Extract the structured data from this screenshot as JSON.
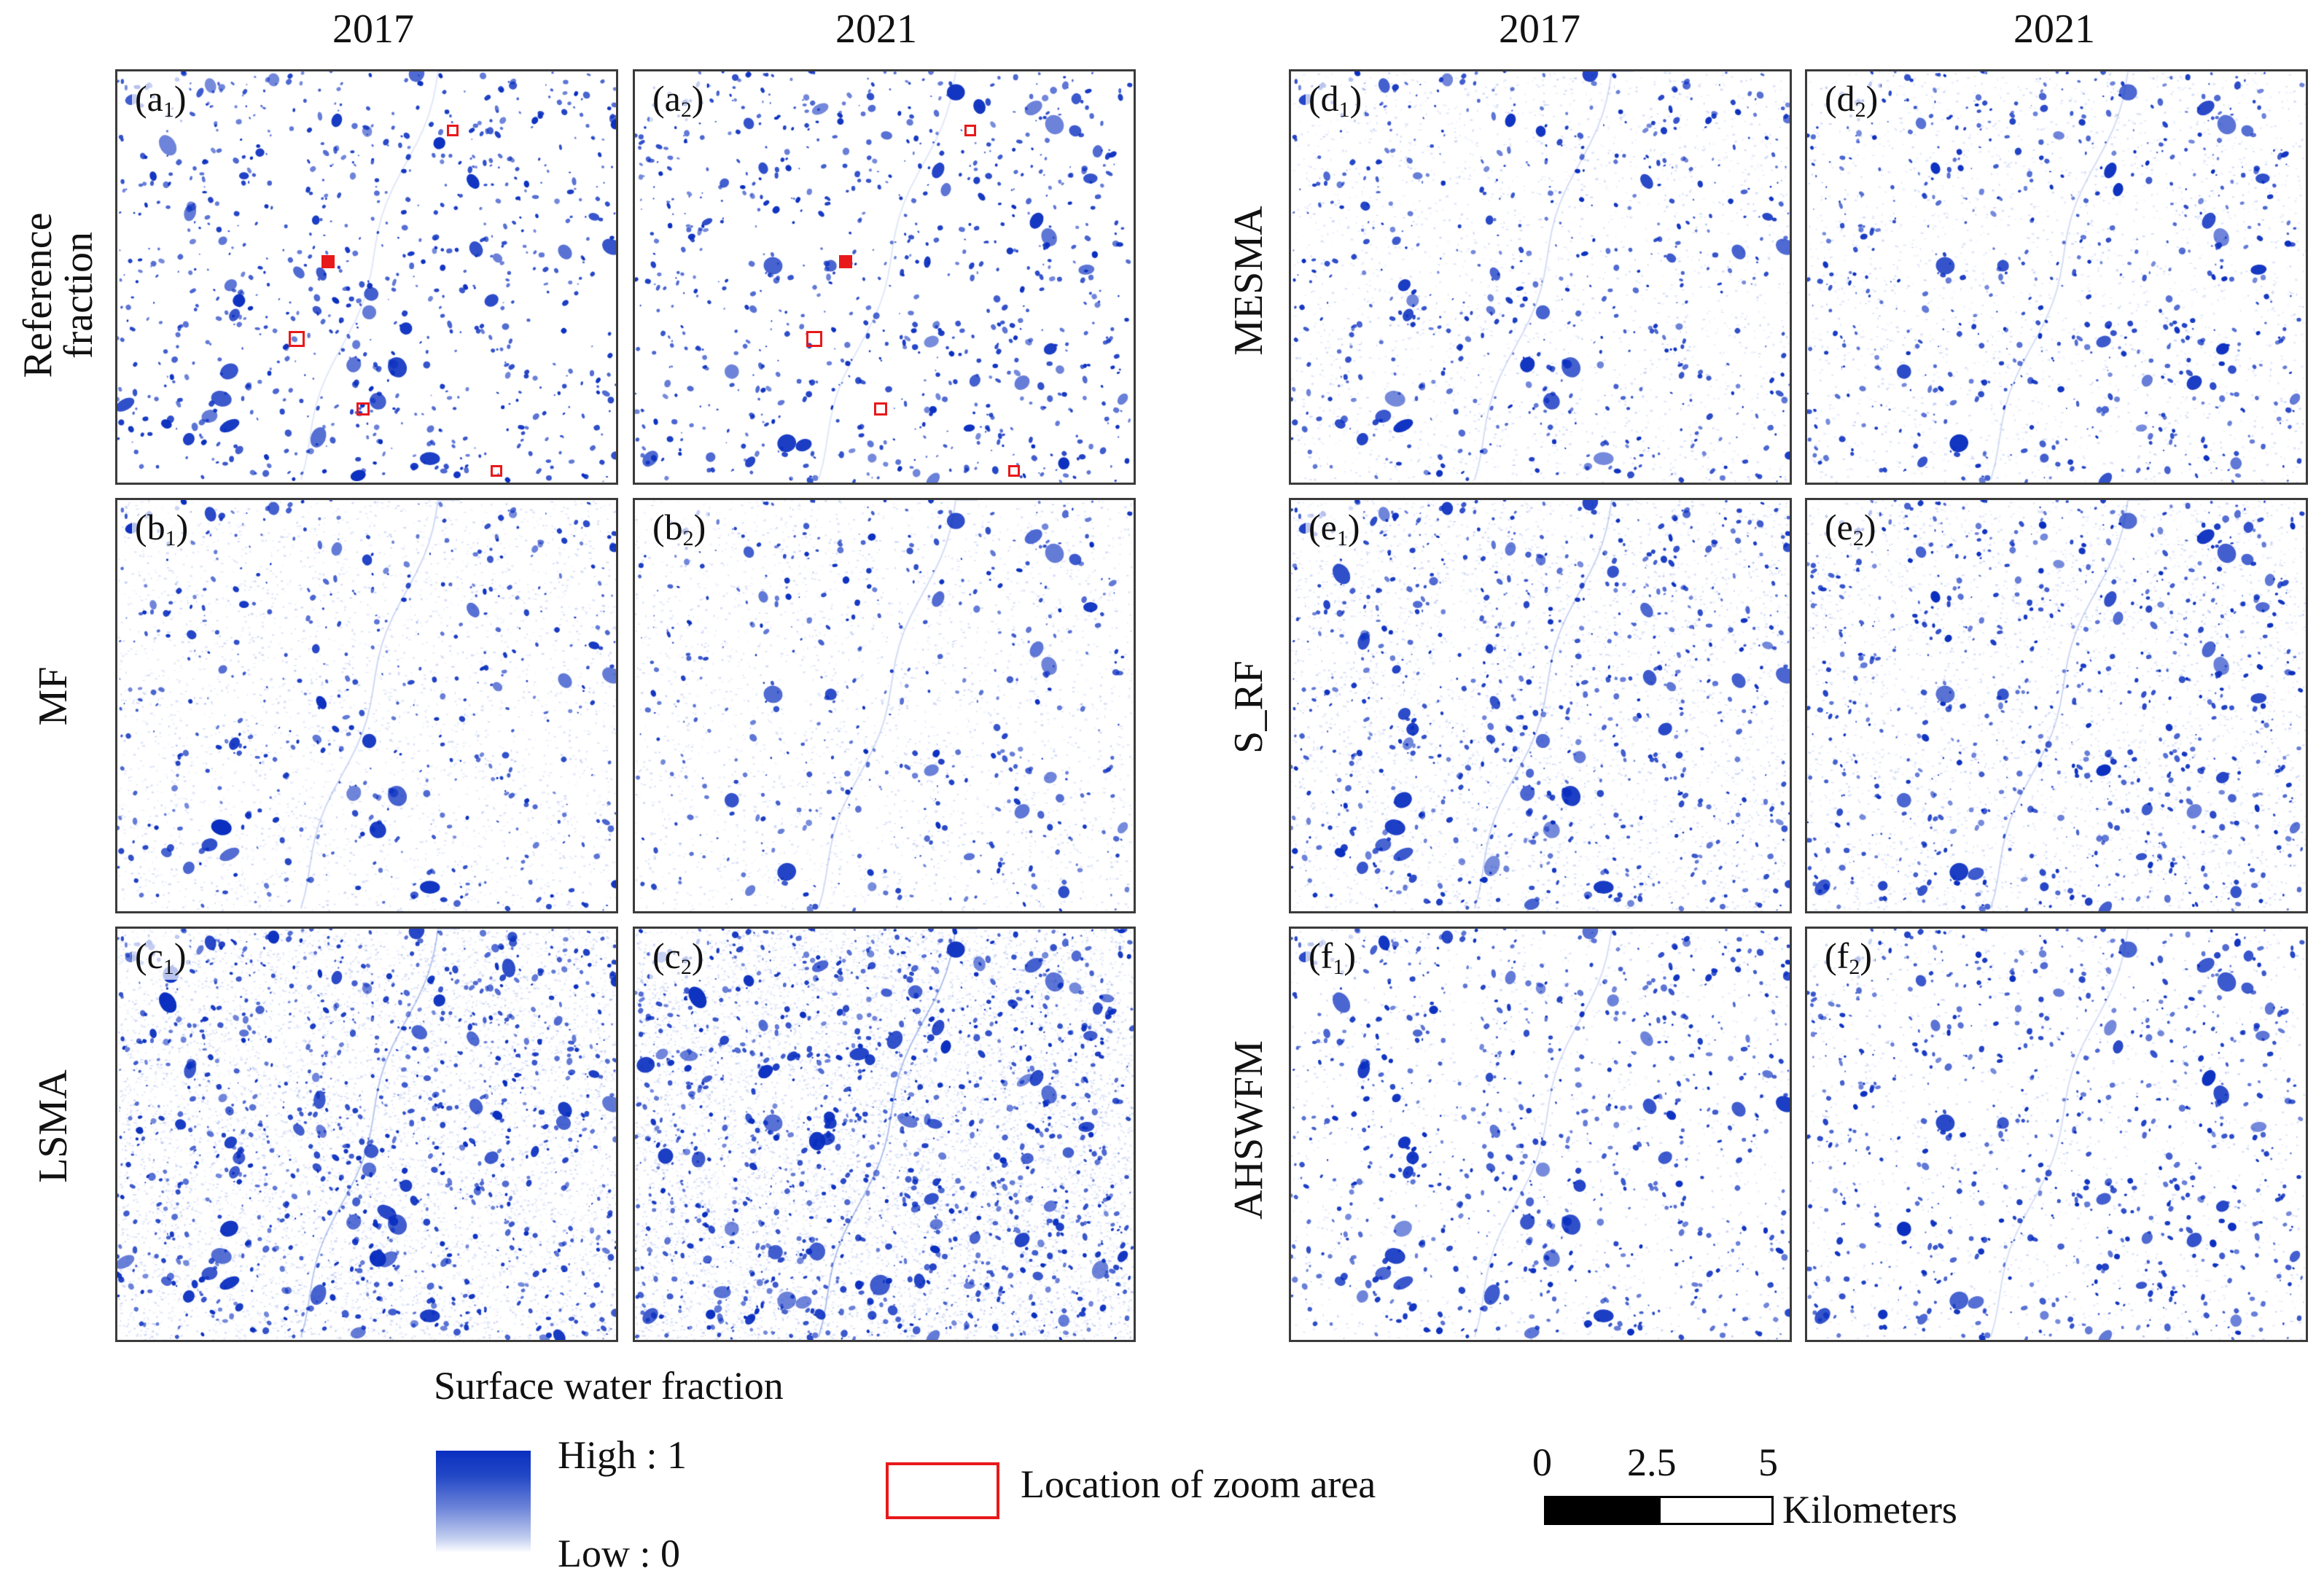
{
  "years": {
    "left_2017": "2017",
    "left_2021": "2021",
    "right_2017": "2017",
    "right_2021": "2021"
  },
  "rows": {
    "a": "Reference fraction",
    "b": "MF",
    "c": "LSMA",
    "d": "MESMA",
    "e": "S_RF",
    "f": "AHSWFM"
  },
  "panels": [
    {
      "id": "a1",
      "letter": "a",
      "sub": "1",
      "method": "Reference fraction",
      "year": "2017",
      "density": 0.9,
      "haze": 0.0
    },
    {
      "id": "a2",
      "letter": "a",
      "sub": "2",
      "method": "Reference fraction",
      "year": "2021",
      "density": 0.9,
      "haze": 0.0
    },
    {
      "id": "b1",
      "letter": "b",
      "sub": "1",
      "method": "MF",
      "year": "2017",
      "density": 0.55,
      "haze": 0.35
    },
    {
      "id": "b2",
      "letter": "b",
      "sub": "2",
      "method": "MF",
      "year": "2021",
      "density": 0.5,
      "haze": 0.3
    },
    {
      "id": "c1",
      "letter": "c",
      "sub": "1",
      "method": "LSMA",
      "year": "2017",
      "density": 1.2,
      "haze": 0.8
    },
    {
      "id": "c2",
      "letter": "c",
      "sub": "2",
      "method": "LSMA",
      "year": "2021",
      "density": 1.4,
      "haze": 1.0
    },
    {
      "id": "d1",
      "letter": "d",
      "sub": "1",
      "method": "MESMA",
      "year": "2017",
      "density": 0.65,
      "haze": 0.25
    },
    {
      "id": "d2",
      "letter": "d",
      "sub": "2",
      "method": "MESMA",
      "year": "2021",
      "density": 0.7,
      "haze": 0.25
    },
    {
      "id": "e1",
      "letter": "e",
      "sub": "1",
      "method": "S_RF",
      "year": "2017",
      "density": 0.85,
      "haze": 0.45
    },
    {
      "id": "e2",
      "letter": "e",
      "sub": "2",
      "method": "S_RF",
      "year": "2021",
      "density": 0.85,
      "haze": 0.4
    },
    {
      "id": "f1",
      "letter": "f",
      "sub": "1",
      "method": "AHSWFM",
      "year": "2017",
      "density": 0.85,
      "haze": 0.2
    },
    {
      "id": "f2",
      "letter": "f",
      "sub": "2",
      "method": "AHSWFM",
      "year": "2021",
      "density": 0.85,
      "haze": 0.2
    }
  ],
  "legend": {
    "title": "Surface water fraction",
    "high": "High : 1",
    "low": "Low : 0",
    "zoom_label": "Location of zoom area",
    "scale_ticks": [
      "0",
      "2.5",
      "5"
    ],
    "scale_unit": "Kilometers"
  },
  "colors": {
    "water": "#0a2fc0",
    "zoom_box": "#e8191b",
    "border": "#3b3b3b"
  }
}
